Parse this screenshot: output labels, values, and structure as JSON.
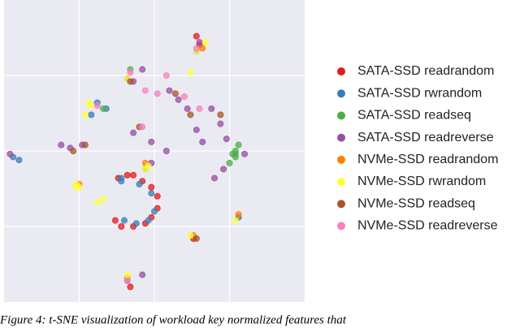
{
  "chart_data": {
    "type": "scatter",
    "caption": "Figure 4: t-SNE visualization of workload key normalized features that",
    "xlim": [
      0,
      100
    ],
    "ylim": [
      0,
      100
    ],
    "xticks": [
      25,
      50,
      75
    ],
    "yticks": [
      25,
      50,
      75
    ],
    "grid": true,
    "legend": "right",
    "series": [
      {
        "name": "SATA-SSD readrandom",
        "color": "#e41a1c",
        "x": [
          38,
          41,
          43,
          46,
          49,
          51,
          51,
          49,
          47,
          43,
          39,
          37,
          63,
          42,
          65,
          64
        ],
        "values": [
          41,
          42,
          42,
          40,
          38,
          35,
          31,
          28,
          26,
          25,
          25,
          27,
          21,
          5,
          85,
          88
        ]
      },
      {
        "name": "SATA-SSD rwrandom",
        "color": "#377eb8",
        "x": [
          39,
          45,
          49,
          50,
          48,
          44,
          40,
          39,
          31,
          34,
          29,
          3,
          5,
          78,
          41,
          64
        ],
        "values": [
          40,
          39,
          36,
          30,
          27,
          26,
          27,
          41,
          66,
          64,
          62,
          48,
          47,
          28,
          7,
          83
        ]
      },
      {
        "name": "SATA-SSD readseq",
        "color": "#4daf4a",
        "x": [
          76,
          77,
          78,
          77,
          75,
          77,
          33,
          47,
          42
        ],
        "values": [
          49,
          50,
          52,
          48,
          46,
          49,
          64,
          44,
          77
        ]
      },
      {
        "name": "SATA-SSD readreverse",
        "color": "#984ea3",
        "x": [
          19,
          22,
          26,
          2,
          41,
          43,
          46,
          55,
          58,
          61,
          64,
          66,
          43,
          49,
          54,
          69,
          72,
          74,
          80,
          70,
          73,
          65,
          46,
          49
        ],
        "values": [
          52,
          51,
          52,
          49,
          74,
          73,
          77,
          70,
          67,
          64,
          57,
          53,
          56,
          53,
          50,
          64,
          59,
          54,
          49,
          41,
          44,
          86,
          9,
          46
        ]
      },
      {
        "name": "NVMe-SSD readrandom",
        "color": "#ff7f00",
        "x": [
          47,
          25,
          78,
          63,
          66,
          41
        ],
        "values": [
          46,
          39,
          29,
          22,
          84,
          8
        ]
      },
      {
        "name": "NVMe-SSD rwrandom",
        "color": "#ffff33",
        "x": [
          24,
          24,
          25,
          33,
          31,
          28,
          29,
          27,
          48,
          47,
          62,
          77,
          62,
          41,
          67,
          64,
          41
        ],
        "values": [
          39,
          38,
          38,
          34,
          33,
          66,
          65,
          62,
          45,
          44,
          76,
          27,
          22,
          9,
          86,
          83,
          74
        ]
      },
      {
        "name": "NVMe-SSD readseq",
        "color": "#a65628",
        "x": [
          23,
          27,
          45,
          57,
          62,
          42,
          64,
          72
        ],
        "values": [
          50,
          52,
          58,
          69,
          62,
          73,
          21,
          62
        ]
      },
      {
        "name": "NVMe-SSD readreverse",
        "color": "#f781bf",
        "x": [
          42,
          47,
          51,
          54,
          60,
          65,
          41,
          64,
          31,
          46
        ],
        "values": [
          76,
          70,
          69,
          75,
          68,
          64,
          7,
          84,
          65,
          58
        ]
      }
    ]
  }
}
